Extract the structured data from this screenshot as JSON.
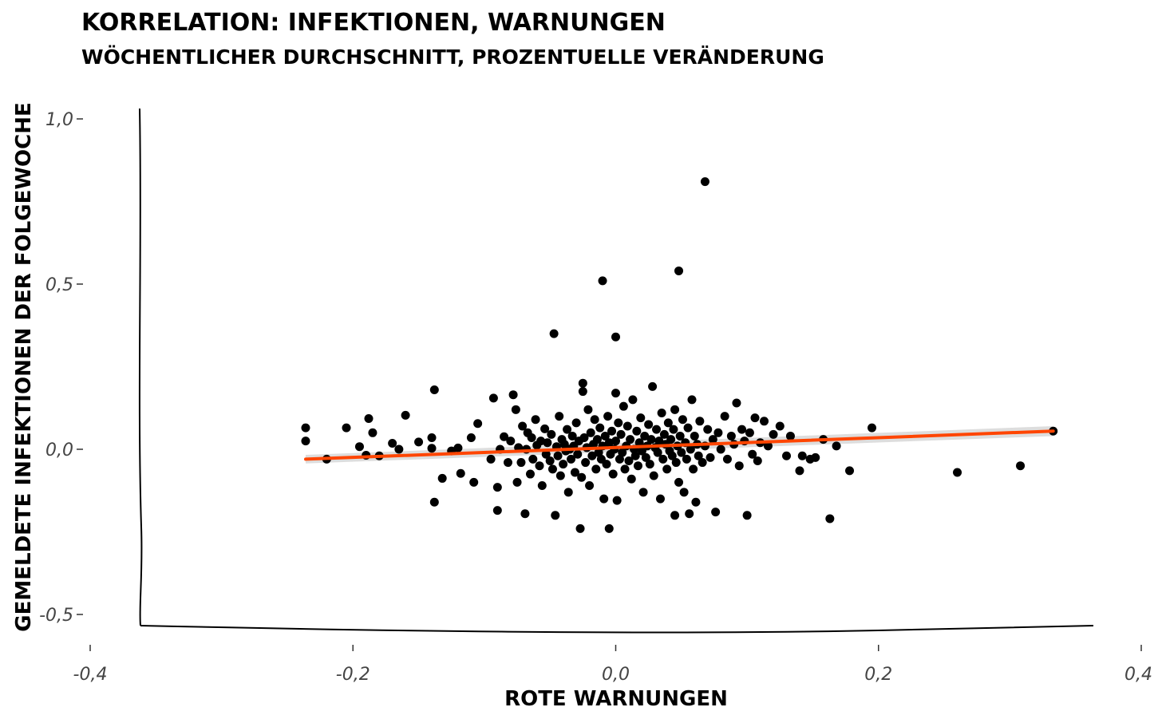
{
  "chart_data": {
    "type": "scatter",
    "title": "KORRELATION: INFEKTIONEN, WARNUNGEN",
    "subtitle": "WÖCHENTLICHER DURCHSCHNITT, PROZENTUELLE VERÄNDERUNG",
    "xlabel": "ROTE WARNUNGEN",
    "ylabel": "GEMELDETE INFEKTIONEN DER FOLGEWOCHE",
    "xlim": [
      -0.4,
      0.4
    ],
    "ylim": [
      -0.5,
      1.0
    ],
    "x_ticks": [
      -0.4,
      -0.2,
      0.0,
      0.2,
      0.4
    ],
    "x_tick_labels": [
      "-0,4",
      "-0,2",
      "0,0",
      "0,2",
      "0,4"
    ],
    "y_ticks": [
      -0.5,
      0.0,
      0.5,
      1.0
    ],
    "y_tick_labels": [
      "-0,5",
      "0,0",
      "0,5",
      "1,0"
    ],
    "grid": false,
    "colors": {
      "points": "#000000",
      "fit_line": "#ff4500",
      "confidence_band": "#d9d9d9"
    },
    "regression": {
      "x": [
        -0.236,
        0.333
      ],
      "y": [
        -0.03,
        0.055
      ],
      "band_halfwidth": [
        0.013,
        0.015
      ]
    },
    "points": [
      [
        -0.236,
        0.065
      ],
      [
        -0.236,
        0.025
      ],
      [
        -0.22,
        -0.03
      ],
      [
        -0.205,
        0.065
      ],
      [
        -0.195,
        0.008
      ],
      [
        -0.19,
        -0.018
      ],
      [
        -0.188,
        0.093
      ],
      [
        -0.185,
        0.05
      ],
      [
        -0.18,
        -0.02
      ],
      [
        -0.17,
        0.018
      ],
      [
        -0.165,
        0.0
      ],
      [
        -0.16,
        0.103
      ],
      [
        -0.15,
        0.022
      ],
      [
        -0.14,
        0.035
      ],
      [
        -0.14,
        0.003
      ],
      [
        -0.138,
        0.18
      ],
      [
        -0.138,
        -0.16
      ],
      [
        -0.132,
        -0.088
      ],
      [
        -0.125,
        -0.005
      ],
      [
        -0.12,
        0.004
      ],
      [
        -0.118,
        -0.073
      ],
      [
        -0.11,
        0.035
      ],
      [
        -0.108,
        -0.1
      ],
      [
        -0.105,
        0.078
      ],
      [
        -0.095,
        -0.03
      ],
      [
        -0.093,
        0.155
      ],
      [
        -0.09,
        -0.185
      ],
      [
        -0.09,
        -0.115
      ],
      [
        -0.088,
        0.0
      ],
      [
        -0.085,
        0.038
      ],
      [
        -0.082,
        -0.04
      ],
      [
        -0.08,
        0.025
      ],
      [
        -0.078,
        0.165
      ],
      [
        -0.076,
        0.12
      ],
      [
        -0.075,
        -0.1
      ],
      [
        -0.074,
        0.005
      ],
      [
        -0.072,
        -0.04
      ],
      [
        -0.071,
        0.07
      ],
      [
        -0.069,
        -0.195
      ],
      [
        -0.068,
        0.0
      ],
      [
        -0.067,
        0.05
      ],
      [
        -0.065,
        -0.075
      ],
      [
        -0.064,
        0.035
      ],
      [
        -0.063,
        -0.03
      ],
      [
        -0.061,
        0.09
      ],
      [
        -0.06,
        0.012
      ],
      [
        -0.058,
        -0.05
      ],
      [
        -0.057,
        0.025
      ],
      [
        -0.056,
        -0.11
      ],
      [
        -0.054,
        0.062
      ],
      [
        -0.053,
        -0.015
      ],
      [
        -0.052,
        0.02
      ],
      [
        -0.05,
        -0.035
      ],
      [
        -0.049,
        0.045
      ],
      [
        -0.048,
        -0.06
      ],
      [
        -0.047,
        0.35
      ],
      [
        -0.046,
        -0.2
      ],
      [
        -0.045,
        0.008
      ],
      [
        -0.044,
        -0.02
      ],
      [
        -0.043,
        0.1
      ],
      [
        -0.042,
        -0.08
      ],
      [
        -0.041,
        0.03
      ],
      [
        -0.04,
        -0.045
      ],
      [
        -0.039,
        0.015
      ],
      [
        -0.038,
        -0.005
      ],
      [
        -0.037,
        0.06
      ],
      [
        -0.036,
        -0.13
      ],
      [
        -0.035,
        0.0
      ],
      [
        -0.034,
        -0.03
      ],
      [
        -0.033,
        0.04
      ],
      [
        -0.032,
        0.01
      ],
      [
        -0.031,
        -0.07
      ],
      [
        -0.03,
        0.08
      ],
      [
        -0.029,
        -0.015
      ],
      [
        -0.028,
        0.025
      ],
      [
        -0.027,
        -0.24
      ],
      [
        -0.026,
        -0.085
      ],
      [
        -0.025,
        0.2
      ],
      [
        -0.025,
        0.175
      ],
      [
        -0.024,
        0.035
      ],
      [
        -0.023,
        -0.04
      ],
      [
        -0.022,
        0.005
      ],
      [
        -0.021,
        0.12
      ],
      [
        -0.02,
        -0.11
      ],
      [
        -0.019,
        0.05
      ],
      [
        -0.018,
        -0.02
      ],
      [
        -0.017,
        0.015
      ],
      [
        -0.016,
        0.09
      ],
      [
        -0.015,
        -0.06
      ],
      [
        -0.014,
        0.03
      ],
      [
        -0.013,
        -0.01
      ],
      [
        -0.012,
        0.065
      ],
      [
        -0.011,
        -0.03
      ],
      [
        -0.01,
        0.01
      ],
      [
        -0.01,
        0.51
      ],
      [
        -0.009,
        -0.15
      ],
      [
        -0.008,
        0.04
      ],
      [
        -0.007,
        -0.045
      ],
      [
        -0.006,
        0.1
      ],
      [
        -0.005,
        -0.24
      ],
      [
        -0.005,
        0.02
      ],
      [
        -0.004,
        -0.015
      ],
      [
        -0.003,
        0.055
      ],
      [
        -0.002,
        -0.075
      ],
      [
        -0.001,
        0.0
      ],
      [
        0.0,
        0.34
      ],
      [
        0.0,
        0.17
      ],
      [
        0.0,
        0.025
      ],
      [
        0.001,
        -0.155
      ],
      [
        0.002,
        0.08
      ],
      [
        0.003,
        -0.03
      ],
      [
        0.004,
        0.045
      ],
      [
        0.005,
        -0.01
      ],
      [
        0.006,
        0.13
      ],
      [
        0.007,
        -0.06
      ],
      [
        0.008,
        0.01
      ],
      [
        0.009,
        0.07
      ],
      [
        0.01,
        -0.035
      ],
      [
        0.011,
        0.03
      ],
      [
        0.012,
        -0.09
      ],
      [
        0.013,
        0.15
      ],
      [
        0.014,
        0.0
      ],
      [
        0.015,
        -0.02
      ],
      [
        0.016,
        0.055
      ],
      [
        0.017,
        -0.05
      ],
      [
        0.018,
        0.02
      ],
      [
        0.019,
        0.095
      ],
      [
        0.02,
        -0.005
      ],
      [
        0.021,
        -0.13
      ],
      [
        0.022,
        0.04
      ],
      [
        0.023,
        -0.025
      ],
      [
        0.024,
        0.01
      ],
      [
        0.025,
        0.075
      ],
      [
        0.026,
        -0.045
      ],
      [
        0.027,
        0.03
      ],
      [
        0.028,
        0.19
      ],
      [
        0.029,
        -0.08
      ],
      [
        0.03,
        0.005
      ],
      [
        0.031,
        0.06
      ],
      [
        0.032,
        -0.01
      ],
      [
        0.033,
        0.025
      ],
      [
        0.034,
        -0.15
      ],
      [
        0.035,
        0.11
      ],
      [
        0.036,
        -0.03
      ],
      [
        0.037,
        0.045
      ],
      [
        0.038,
        0.015
      ],
      [
        0.039,
        -0.06
      ],
      [
        0.04,
        0.08
      ],
      [
        0.041,
        -0.005
      ],
      [
        0.042,
        0.03
      ],
      [
        0.043,
        -0.02
      ],
      [
        0.044,
        0.06
      ],
      [
        0.045,
        -0.2
      ],
      [
        0.045,
        0.12
      ],
      [
        0.046,
        -0.04
      ],
      [
        0.047,
        0.01
      ],
      [
        0.048,
        0.54
      ],
      [
        0.048,
        -0.1
      ],
      [
        0.049,
        0.04
      ],
      [
        0.05,
        -0.01
      ],
      [
        0.051,
        0.09
      ],
      [
        0.052,
        -0.13
      ],
      [
        0.053,
        0.02
      ],
      [
        0.054,
        -0.03
      ],
      [
        0.055,
        0.065
      ],
      [
        0.056,
        -0.195
      ],
      [
        0.057,
        0.0
      ],
      [
        0.058,
        0.15
      ],
      [
        0.059,
        -0.06
      ],
      [
        0.06,
        0.04
      ],
      [
        0.061,
        -0.16
      ],
      [
        0.062,
        0.015
      ],
      [
        0.063,
        -0.02
      ],
      [
        0.064,
        0.085
      ],
      [
        0.066,
        -0.04
      ],
      [
        0.068,
        0.81
      ],
      [
        0.068,
        0.01
      ],
      [
        0.07,
        0.06
      ],
      [
        0.072,
        -0.025
      ],
      [
        0.074,
        0.03
      ],
      [
        0.076,
        -0.19
      ],
      [
        0.078,
        0.05
      ],
      [
        0.08,
        0.0
      ],
      [
        0.083,
        0.1
      ],
      [
        0.085,
        -0.03
      ],
      [
        0.088,
        0.04
      ],
      [
        0.09,
        0.015
      ],
      [
        0.092,
        0.14
      ],
      [
        0.094,
        -0.05
      ],
      [
        0.096,
        0.06
      ],
      [
        0.098,
        0.025
      ],
      [
        0.1,
        -0.2
      ],
      [
        0.102,
        0.05
      ],
      [
        0.104,
        -0.015
      ],
      [
        0.106,
        0.095
      ],
      [
        0.108,
        -0.035
      ],
      [
        0.11,
        0.02
      ],
      [
        0.113,
        0.085
      ],
      [
        0.116,
        0.01
      ],
      [
        0.12,
        0.045
      ],
      [
        0.125,
        0.07
      ],
      [
        0.13,
        -0.02
      ],
      [
        0.133,
        0.04
      ],
      [
        0.14,
        -0.065
      ],
      [
        0.142,
        -0.02
      ],
      [
        0.148,
        -0.03
      ],
      [
        0.152,
        -0.025
      ],
      [
        0.158,
        0.03
      ],
      [
        0.163,
        -0.21
      ],
      [
        0.168,
        0.01
      ],
      [
        0.178,
        -0.065
      ],
      [
        0.195,
        0.065
      ],
      [
        0.26,
        -0.07
      ],
      [
        0.308,
        -0.05
      ],
      [
        0.333,
        0.055
      ]
    ]
  }
}
